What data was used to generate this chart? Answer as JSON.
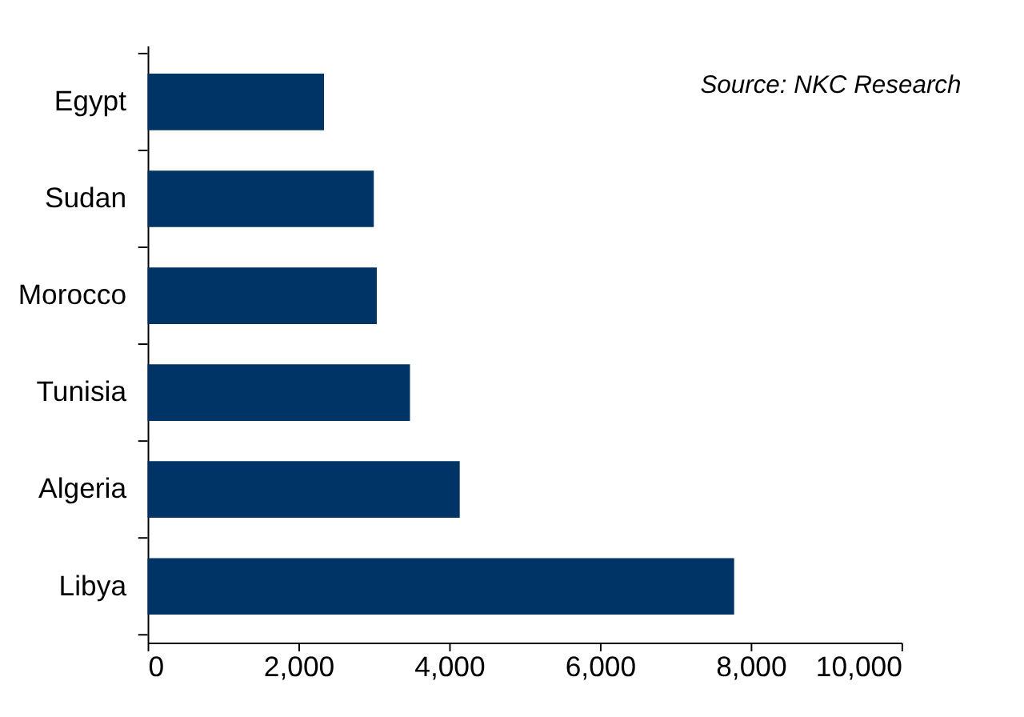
{
  "chart_data": {
    "type": "bar",
    "orientation": "horizontal",
    "categories": [
      "Egypt",
      "Sudan",
      "Morocco",
      "Tunisia",
      "Algeria",
      "Libya"
    ],
    "values": [
      2340,
      3000,
      3040,
      3480,
      4140,
      7780
    ],
    "color": "#003366",
    "xlim": [
      0,
      10000
    ],
    "xticks": [
      {
        "value": 0,
        "label": "0"
      },
      {
        "value": 2000,
        "label": "2,000"
      },
      {
        "value": 4000,
        "label": "4,000"
      },
      {
        "value": 6000,
        "label": "6,000"
      },
      {
        "value": 8000,
        "label": "8,000"
      },
      {
        "value": 10000,
        "label": "10,000"
      }
    ],
    "annotations": [
      "Source: NKC Research"
    ],
    "grid": false
  }
}
